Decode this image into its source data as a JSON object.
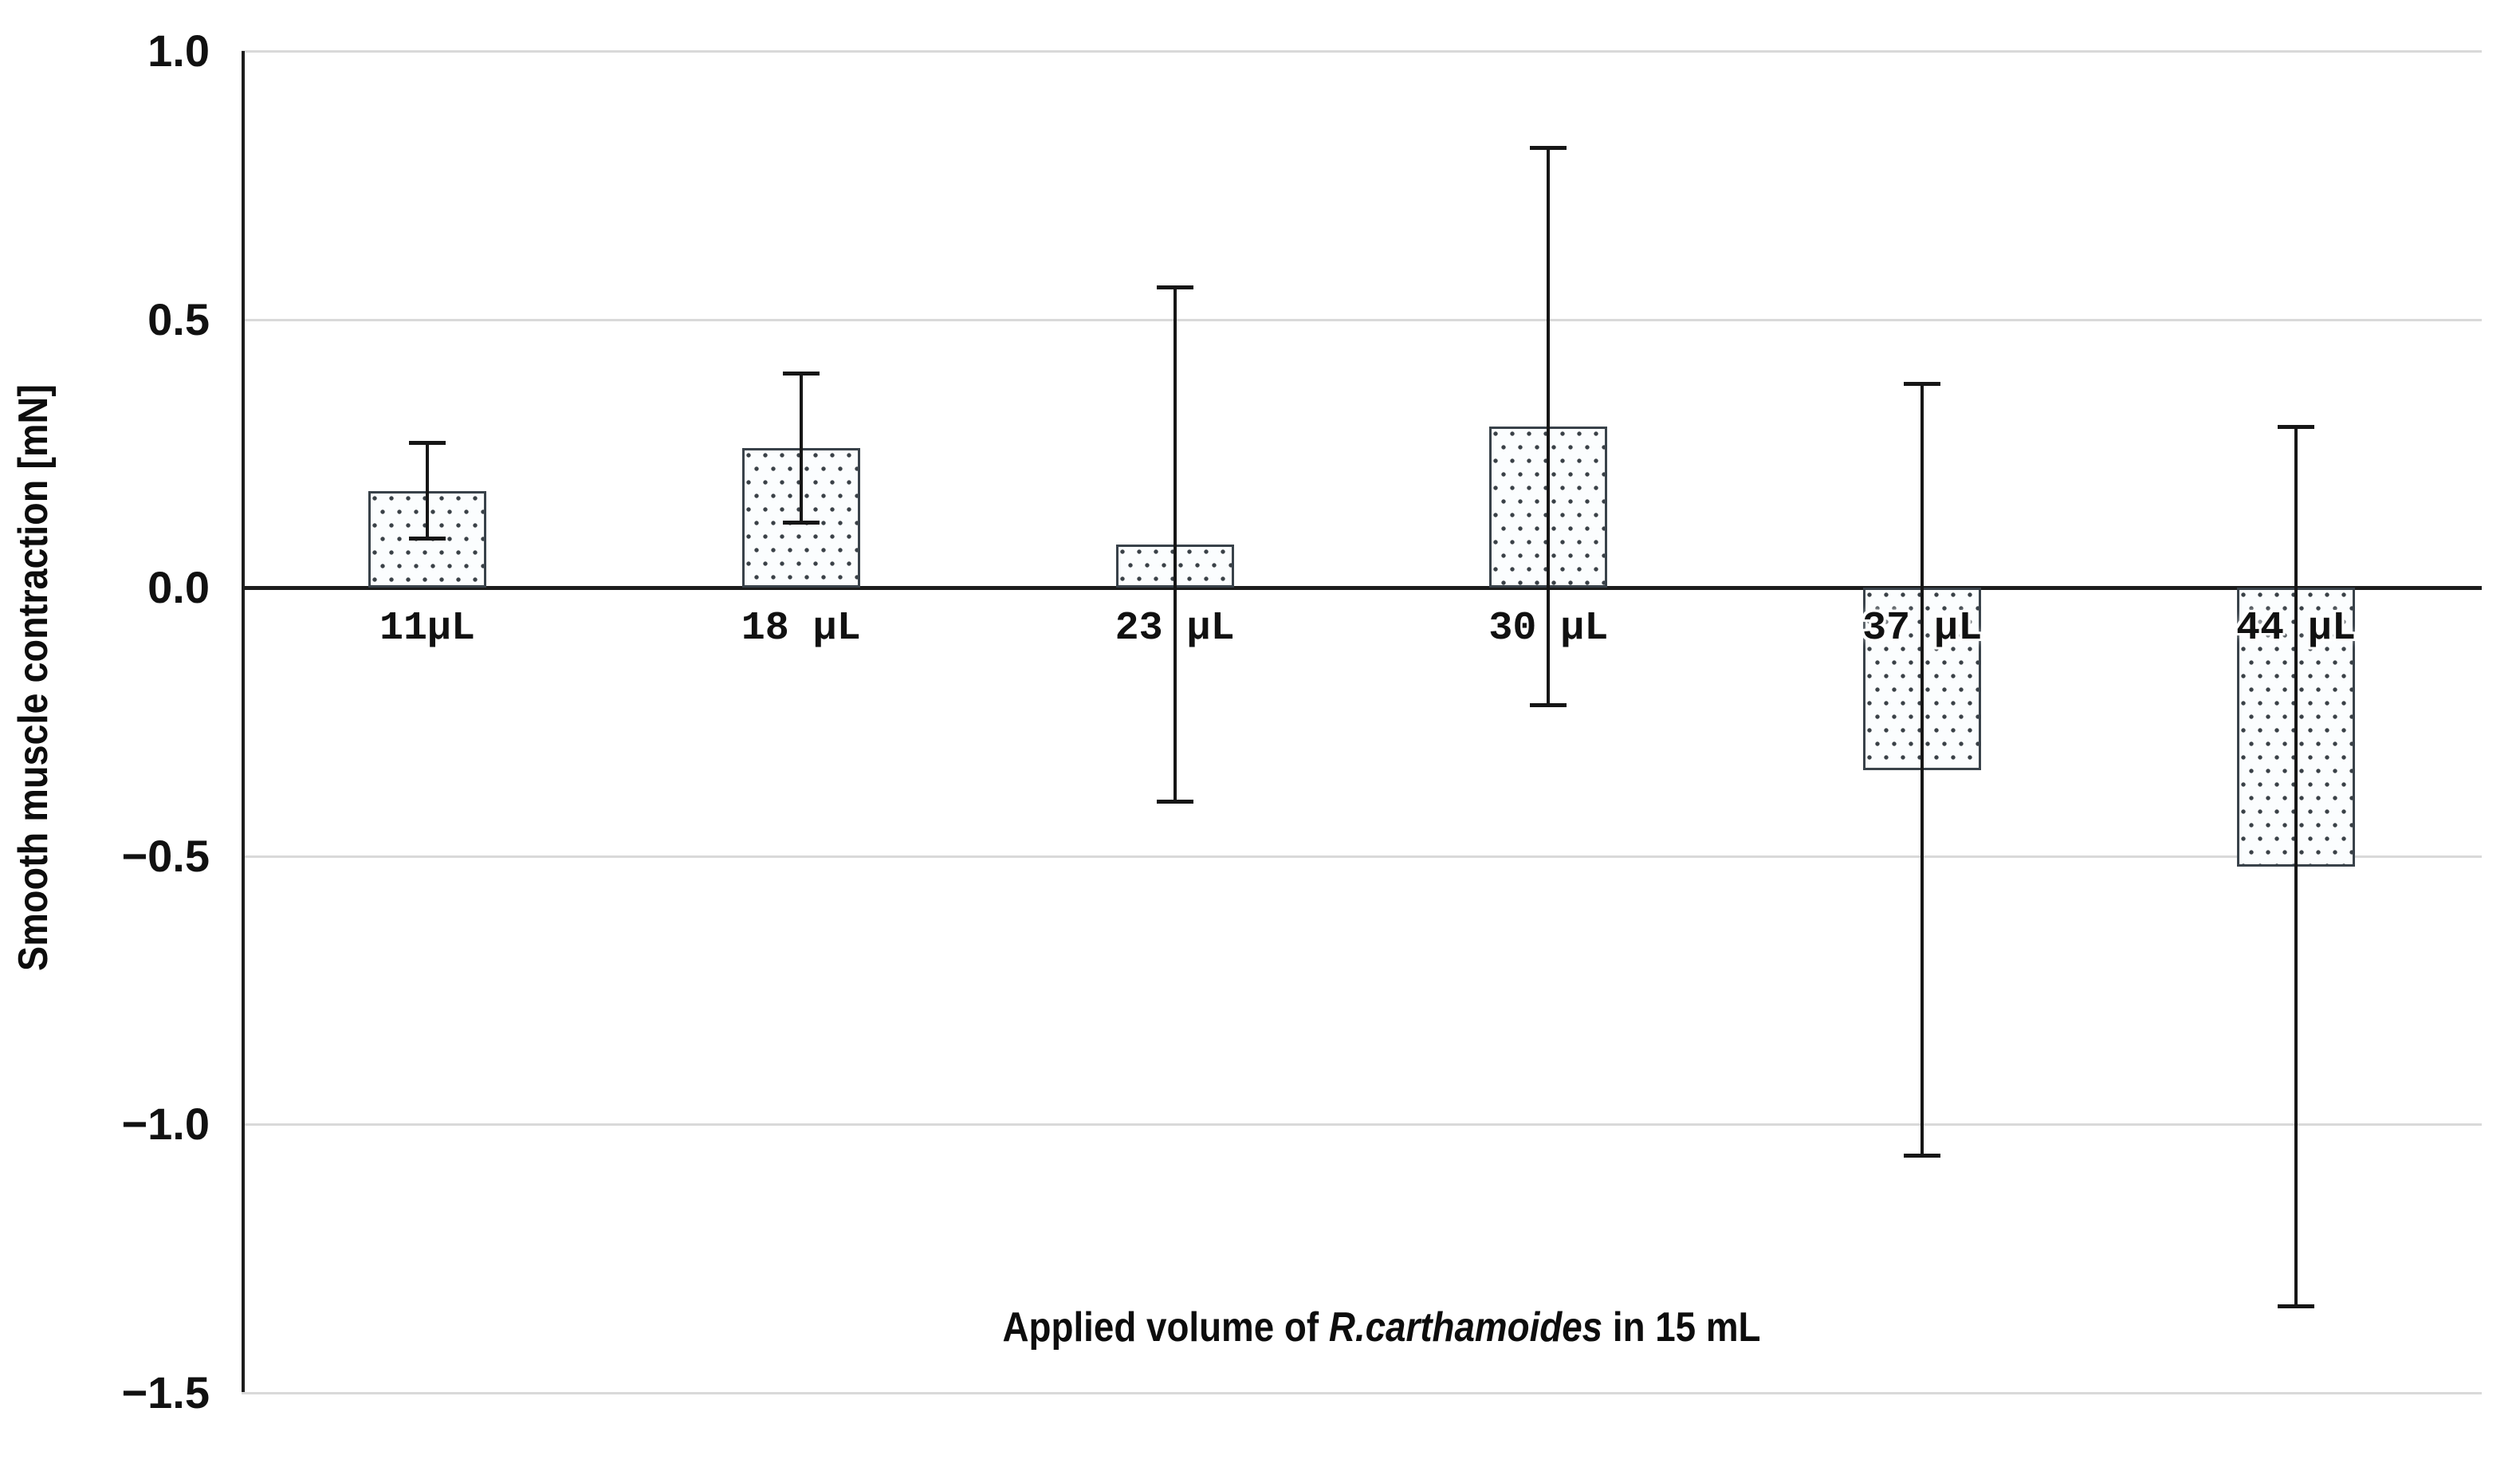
{
  "chart_data": {
    "type": "bar",
    "title": "",
    "categories": [
      "11µL",
      "18 µL",
      "23 µL",
      "30 µL",
      "37 µL",
      "44 µL"
    ],
    "values": [
      0.18,
      0.26,
      0.08,
      0.3,
      -0.34,
      -0.52
    ],
    "error_low": [
      0.09,
      0.12,
      -0.4,
      -0.22,
      -1.06,
      -1.34
    ],
    "error_high": [
      0.27,
      0.4,
      0.56,
      0.82,
      0.38,
      0.3
    ],
    "xlabel_prefix": "Applied volume of ",
    "xlabel_italic": "R.carthamoides",
    "xlabel_suffix": " in 15 mL",
    "ylabel": "Smooth muscle contraction [mN]",
    "yticks": [
      1.0,
      0.5,
      0.0,
      -0.5,
      -1.0,
      -1.5
    ],
    "ytick_labels": [
      "1.0",
      "0.5",
      "0.0",
      "−0.5",
      "−1.0",
      "−1.5"
    ],
    "ylim": [
      -1.5,
      1.0
    ],
    "grid": "horizontal-light-gray",
    "legend": "none",
    "colors": {
      "bar_fill": "#fbfdfe",
      "bar_border": "#39424a",
      "bar_dot": "#3a4147",
      "error_bar": "#161616",
      "axis": "#1c1c1c",
      "gridline": "#d9d9d9",
      "background": "#ffffff",
      "text": "#111111"
    }
  }
}
